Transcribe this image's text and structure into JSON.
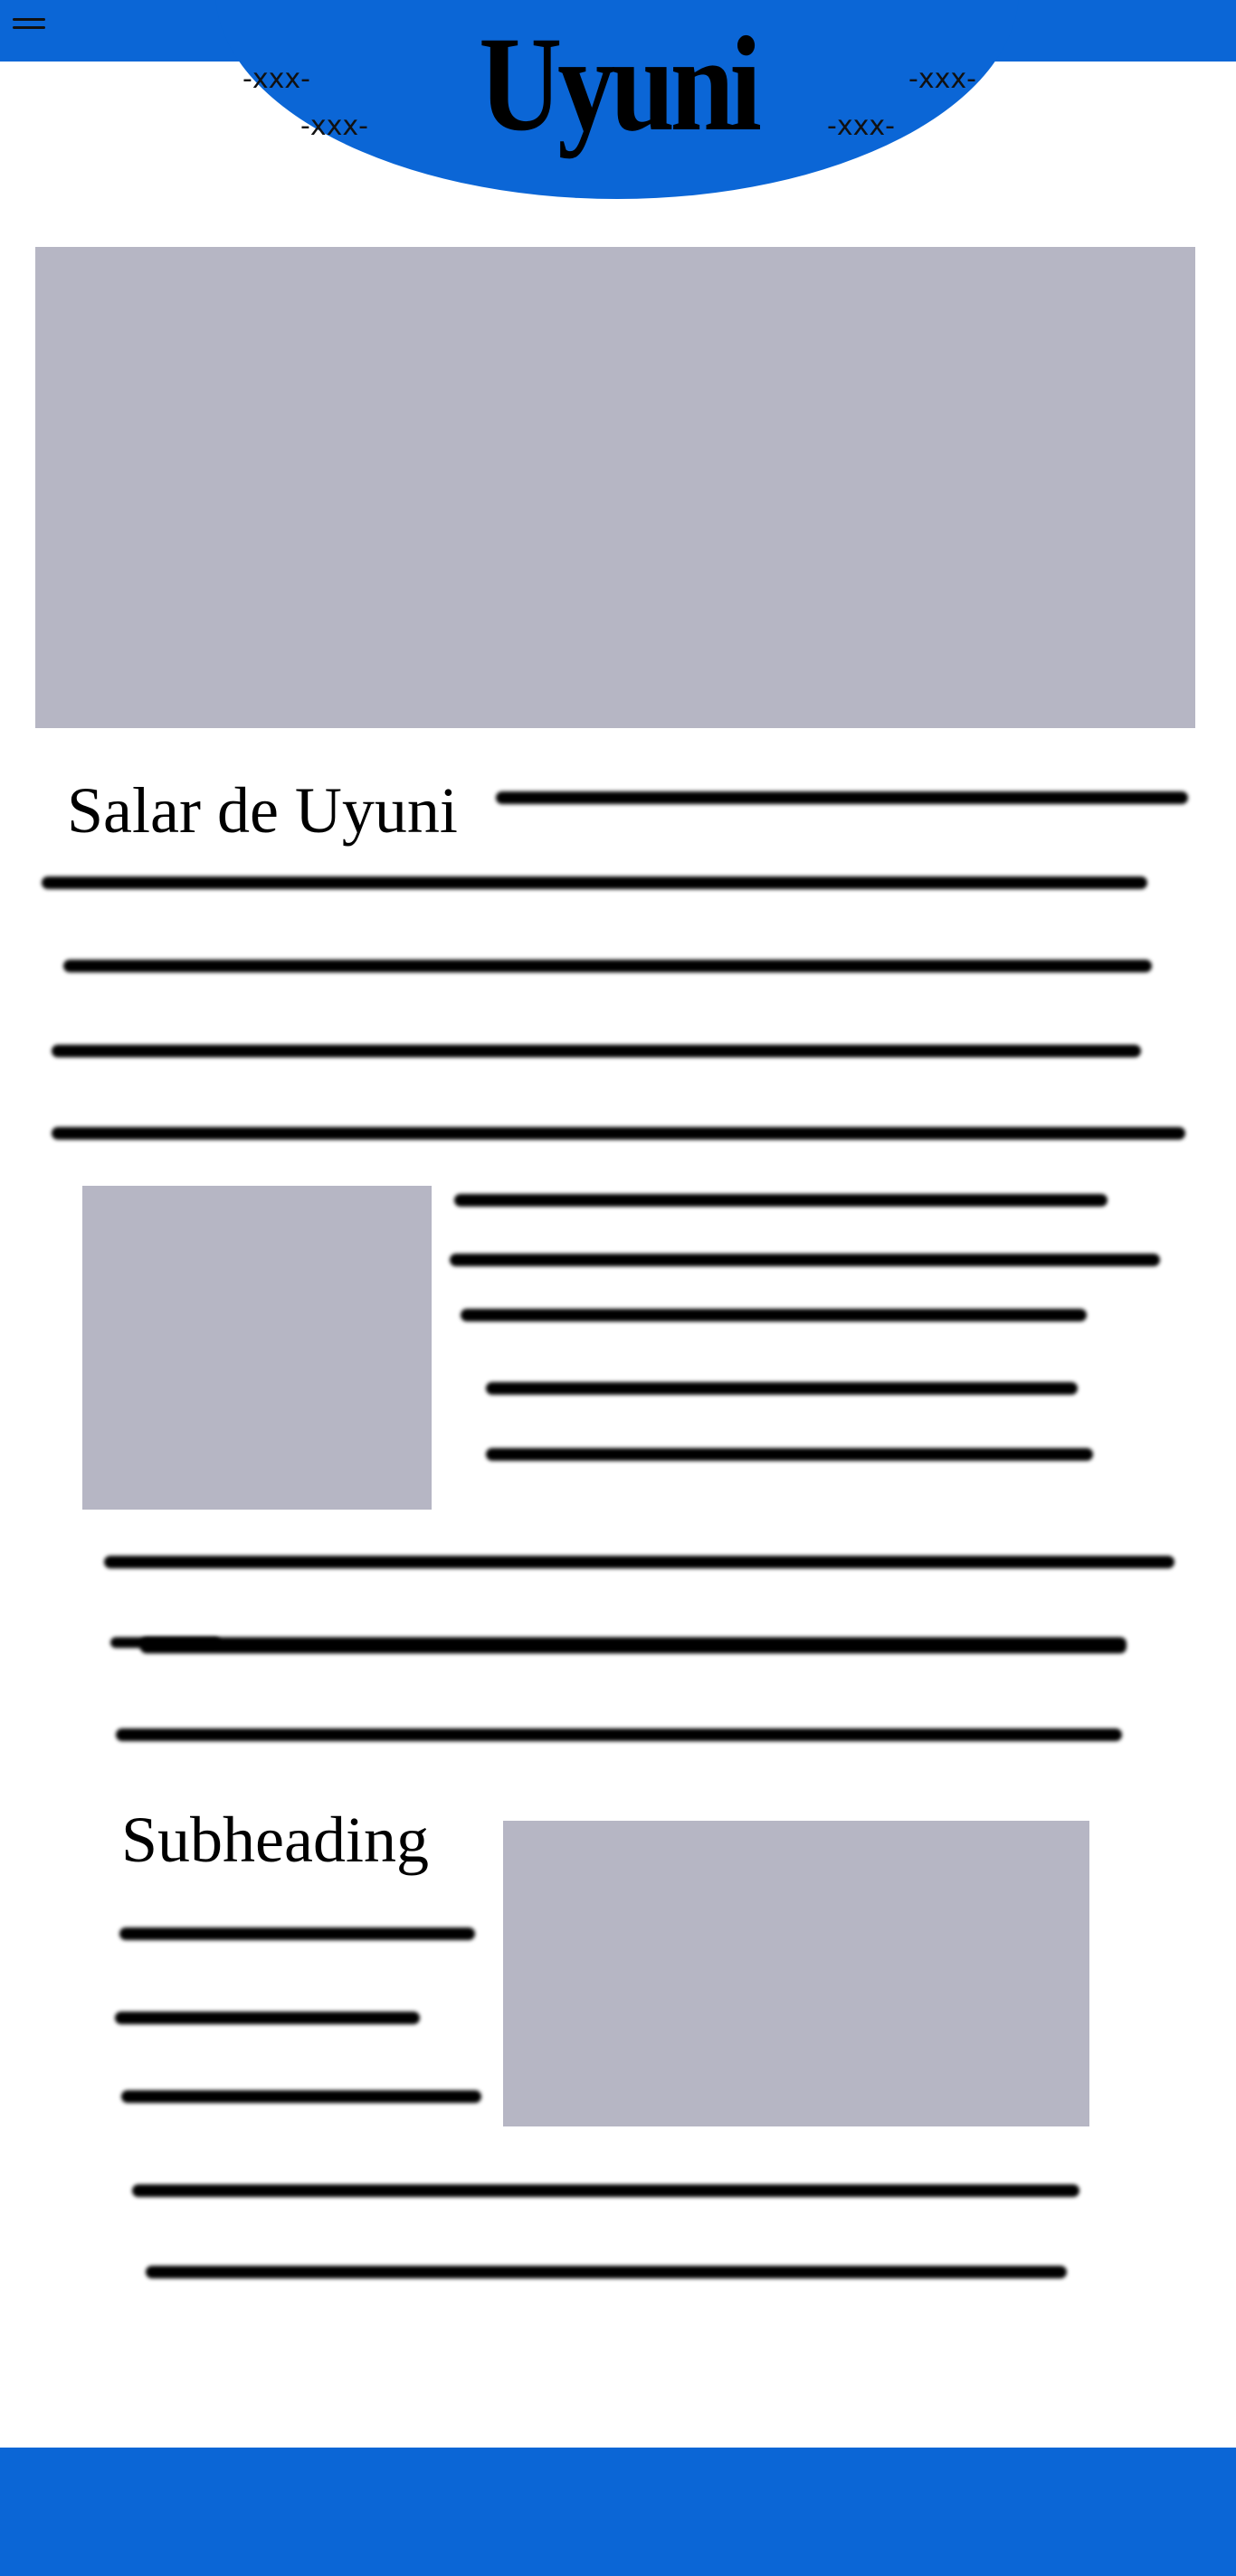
{
  "header": {
    "logo_text": "Uyuni",
    "nav_links": [
      "-xxx-",
      "-xxx-",
      "-xxx-",
      "-xxx-"
    ]
  },
  "article": {
    "title": "Salar de Uyuni",
    "subheading": "Subheading"
  },
  "colors": {
    "brand_blue": "#0b66d6",
    "image_placeholder": "#b6b6c4",
    "text_line": "#000000",
    "background": "#ffffff"
  },
  "icons": [
    "menu-icon"
  ]
}
